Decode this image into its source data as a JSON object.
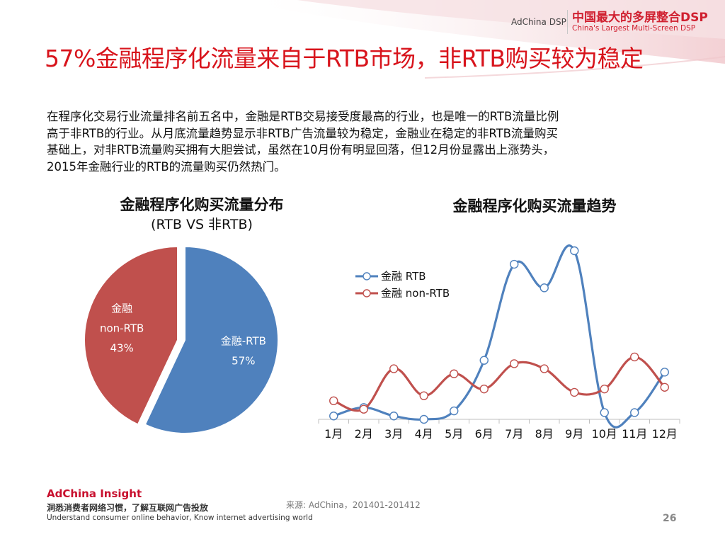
{
  "header": {
    "brand_small": "AdChina DSP",
    "brand_cn": "中国最大的多屏整合DSP",
    "brand_en": "China's Largest Multi-Screen DSP"
  },
  "slide": {
    "title": "57%金融程序化流量来自于RTB市场，非RTB购买较为稳定",
    "body_lines": [
      "在程序化交易行业流量排名前五名中，金融是RTB交易接受度最高的行业，也是唯一的RTB流量比例",
      "高于非RTB的行业。从月底流量趋势显示非RTB广告流量较为稳定，金融业在稳定的非RTB流量购买",
      "基础上，对非RTB流量购买拥有大胆尝试，虽然在10月份有明显回落，但12月份显露出上涨势头，",
      "2015年金融行业的RTB的流量购买仍然热门。"
    ]
  },
  "chart_data": [
    {
      "type": "pie",
      "title": "金融程序化购买流量分布",
      "subtitle": "(RTB VS 非RTB)",
      "slices": [
        {
          "label_lines": [
            "金融-RTB"
          ],
          "value": 57,
          "value_label": "57%",
          "color": "#4f81bd"
        },
        {
          "label_lines": [
            "金融",
            "non-RTB"
          ],
          "value": 43,
          "value_label": "43%",
          "color": "#c0504d"
        }
      ]
    },
    {
      "type": "line",
      "title": "金融程序化购买流量趋势",
      "categories": [
        "1月",
        "2月",
        "3月",
        "4月",
        "5月",
        "6月",
        "7月",
        "8月",
        "9月",
        "10月",
        "11月",
        "12月"
      ],
      "ylim": [
        0,
        100
      ],
      "grid": false,
      "legend": "top-left",
      "series": [
        {
          "name": "金融 RTB",
          "color": "#4f81bd",
          "values": [
            2,
            7,
            2,
            0,
            5,
            35,
            92,
            78,
            100,
            4,
            4,
            28
          ]
        },
        {
          "name": "金融 non-RTB",
          "color": "#c0504d",
          "values": [
            11,
            6,
            30,
            14,
            27,
            18,
            33,
            30,
            16,
            18,
            37,
            19
          ]
        }
      ]
    }
  ],
  "footer": {
    "brand": "AdChina Insight",
    "tagline_cn": "洞悉消费者网络习惯，了解互联网广告投放",
    "tagline_en": "Understand consumer online behavior, Know internet advertising world",
    "source": "来源: AdChina，201401-201412",
    "page_number": "26"
  }
}
